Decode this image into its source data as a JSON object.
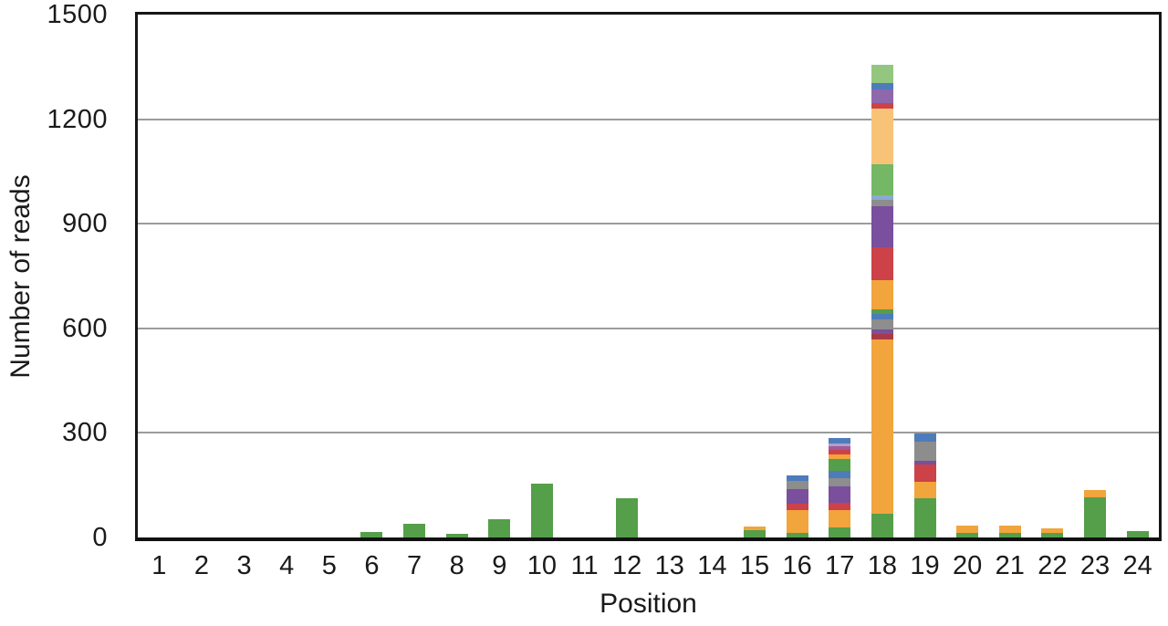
{
  "figure": {
    "background": "#ffffff",
    "frame_color": "#161616",
    "grid_color": "#9b9b9b"
  },
  "chart_data": {
    "type": "bar",
    "subtype": "stacked-vertical",
    "title": "",
    "xlabel": "Position",
    "ylabel": "Number of reads",
    "ylim": [
      0,
      1500
    ],
    "y_ticks": [
      0,
      300,
      600,
      900,
      1200,
      1500
    ],
    "grid": "horizontal",
    "legend": "none",
    "categories": [
      "1",
      "2",
      "3",
      "4",
      "5",
      "6",
      "7",
      "8",
      "9",
      "10",
      "11",
      "12",
      "13",
      "14",
      "15",
      "16",
      "17",
      "18",
      "19",
      "20",
      "21",
      "22",
      "23",
      "24"
    ],
    "colors": {
      "green": "#559e4a",
      "midgreen": "#74b765",
      "lightgreen": "#93c77f",
      "orange": "#f2a43d",
      "lightorange": "#f9c377",
      "red": "#cc4248",
      "darkred": "#a93a44",
      "purple": "#7a4f9d",
      "orchid": "#8f67ab",
      "magenta": "#a15b99",
      "lavender": "#b0a0cc",
      "gray": "#8d8d8d",
      "blue": "#4e7cba",
      "lightblue": "#87abd1"
    },
    "bars": [
      {
        "position": "1",
        "total": 0,
        "segments": []
      },
      {
        "position": "2",
        "total": 0,
        "segments": []
      },
      {
        "position": "3",
        "total": 0,
        "segments": []
      },
      {
        "position": "4",
        "total": 0,
        "segments": []
      },
      {
        "position": "5",
        "total": 0,
        "segments": []
      },
      {
        "position": "6",
        "total": 15,
        "segments": [
          [
            "green",
            15
          ]
        ]
      },
      {
        "position": "7",
        "total": 40,
        "segments": [
          [
            "green",
            40
          ]
        ]
      },
      {
        "position": "8",
        "total": 10,
        "segments": [
          [
            "green",
            10
          ]
        ]
      },
      {
        "position": "9",
        "total": 52,
        "segments": [
          [
            "green",
            52
          ]
        ]
      },
      {
        "position": "10",
        "total": 155,
        "segments": [
          [
            "green",
            155
          ]
        ]
      },
      {
        "position": "11",
        "total": 0,
        "segments": []
      },
      {
        "position": "12",
        "total": 113,
        "segments": [
          [
            "green",
            113
          ]
        ]
      },
      {
        "position": "13",
        "total": 0,
        "segments": []
      },
      {
        "position": "14",
        "total": 0,
        "segments": []
      },
      {
        "position": "15",
        "total": 30,
        "segments": [
          [
            "green",
            20
          ],
          [
            "orange",
            10
          ]
        ]
      },
      {
        "position": "16",
        "total": 174,
        "segments": [
          [
            "green",
            12
          ],
          [
            "orange",
            65
          ],
          [
            "red",
            18
          ],
          [
            "purple",
            41
          ],
          [
            "gray",
            23
          ],
          [
            "blue",
            15
          ]
        ]
      },
      {
        "position": "17",
        "total": 281,
        "segments": [
          [
            "green",
            28
          ],
          [
            "orange",
            49
          ],
          [
            "red",
            21
          ],
          [
            "purple",
            46
          ],
          [
            "gray",
            23
          ],
          [
            "blue",
            21
          ],
          [
            "green",
            34
          ],
          [
            "orange",
            13
          ],
          [
            "red",
            13
          ],
          [
            "magenta",
            10
          ],
          [
            "lavender",
            8
          ],
          [
            "blue",
            15
          ]
        ]
      },
      {
        "position": "18",
        "total": 1351,
        "segments": [
          [
            "green",
            67
          ],
          [
            "orange",
            501
          ],
          [
            "darkred",
            15
          ],
          [
            "purple",
            14
          ],
          [
            "gray",
            28
          ],
          [
            "blue",
            15
          ],
          [
            "green",
            13
          ],
          [
            "orange",
            83
          ],
          [
            "red",
            93
          ],
          [
            "purple",
            119
          ],
          [
            "gray",
            18
          ],
          [
            "lightblue",
            13
          ],
          [
            "midgreen",
            88
          ],
          [
            "lightorange",
            160
          ],
          [
            "red",
            15
          ],
          [
            "orchid",
            39
          ],
          [
            "blue",
            18
          ],
          [
            "lightgreen",
            52
          ]
        ]
      },
      {
        "position": "19",
        "total": 295,
        "segments": [
          [
            "green",
            112
          ],
          [
            "orange",
            46
          ],
          [
            "red",
            49
          ],
          [
            "purple",
            10
          ],
          [
            "gray",
            54
          ],
          [
            "blue",
            24
          ]
        ]
      },
      {
        "position": "20",
        "total": 33,
        "segments": [
          [
            "green",
            12
          ],
          [
            "orange",
            21
          ]
        ]
      },
      {
        "position": "21",
        "total": 32,
        "segments": [
          [
            "green",
            12
          ],
          [
            "orange",
            20
          ]
        ]
      },
      {
        "position": "22",
        "total": 25,
        "segments": [
          [
            "green",
            12
          ],
          [
            "orange",
            13
          ]
        ]
      },
      {
        "position": "23",
        "total": 137,
        "segments": [
          [
            "green",
            115
          ],
          [
            "orange",
            22
          ]
        ]
      },
      {
        "position": "24",
        "total": 18,
        "segments": [
          [
            "green",
            18
          ]
        ]
      }
    ]
  }
}
